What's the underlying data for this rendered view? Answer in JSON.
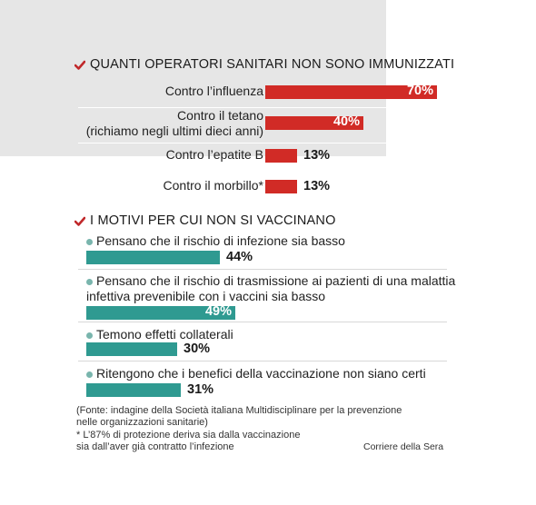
{
  "chart_data": [
    {
      "type": "bar",
      "title": "QUANTI OPERATORI SANITARI NON SONO IMMUNIZZATI",
      "color": "#d12b26",
      "xlim": [
        0,
        100
      ],
      "categories": [
        {
          "line1": "Contro l’influenza",
          "line2": ""
        },
        {
          "line1": "Contro il tetano",
          "line2": "(richiamo negli ultimi dieci anni)"
        },
        {
          "line1": "Contro l’epatite B",
          "line2": ""
        },
        {
          "line1": "Contro il morbillo*",
          "line2": ""
        }
      ],
      "values": [
        70,
        40,
        13,
        13
      ],
      "value_labels": [
        "70%",
        "40%",
        "13%",
        "13%"
      ]
    },
    {
      "type": "bar",
      "title": "I MOTIVI PER CUI NON SI VACCINANO",
      "color": "#2f9a91",
      "xlim": [
        0,
        100
      ],
      "categories": [
        {
          "line1": "Pensano che il rischio di infezione sia basso",
          "line2": ""
        },
        {
          "line1": "Pensano che il rischio di trasmissione ai pazienti di una malattia",
          "line2": "infettiva prevenibile con i vaccini sia basso"
        },
        {
          "line1": "Temono effetti collaterali",
          "line2": ""
        },
        {
          "line1": "Ritengono che i benefici della vaccinazione non siano certi",
          "line2": ""
        }
      ],
      "values": [
        44,
        49,
        30,
        31
      ],
      "value_labels": [
        "44%",
        "49%",
        "30%",
        "31%"
      ]
    }
  ],
  "footnotes": {
    "source_line1": "(Fonte: indagine della Società italiana Multidisciplinare per la prevenzione",
    "source_line2": "nelle organizzazioni sanitarie)",
    "asterisk_line1": "* L’87% di protezione deriva sia dalla vaccinazione",
    "asterisk_line2": "sia dall’aver già contratto l’infezione",
    "credit": "Corriere della Sera"
  },
  "colors": {
    "check": "#c0282a",
    "panel_bg": "#e6e6e6",
    "dot": "#79b5ad"
  }
}
